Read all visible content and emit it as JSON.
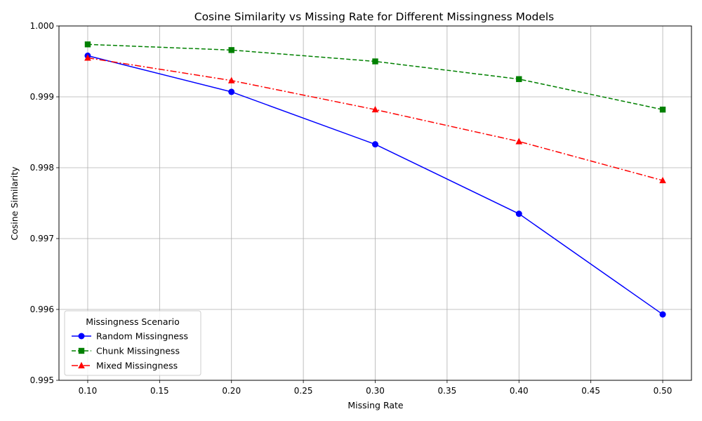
{
  "chart_data": {
    "type": "line",
    "title": "Cosine Similarity vs Missing Rate for Different Missingness Models",
    "xlabel": "Missing Rate",
    "ylabel": "Cosine Similarity",
    "x": [
      0.1,
      0.2,
      0.3,
      0.4,
      0.5
    ],
    "xlim": [
      0.08,
      0.52
    ],
    "ylim": [
      0.995,
      1.0
    ],
    "xticks": [
      0.1,
      0.15,
      0.2,
      0.25,
      0.3,
      0.35,
      0.4,
      0.45,
      0.5
    ],
    "xtick_labels": [
      "0.10",
      "0.15",
      "0.20",
      "0.25",
      "0.30",
      "0.35",
      "0.40",
      "0.45",
      "0.50"
    ],
    "yticks": [
      0.995,
      0.996,
      0.997,
      0.998,
      0.999,
      1.0
    ],
    "ytick_labels": [
      "0.995",
      "0.996",
      "0.997",
      "0.998",
      "0.999",
      "1.000"
    ],
    "grid": true,
    "legend": {
      "title": "Missingness Scenario",
      "position": "lower-left"
    },
    "series": [
      {
        "name": "Random Missingness",
        "color": "#0000ff",
        "marker": "circle",
        "linestyle": "solid",
        "values": [
          0.99958,
          0.99907,
          0.99833,
          0.99735,
          0.99593
        ]
      },
      {
        "name": "Chunk Missingness",
        "color": "#008000",
        "marker": "square",
        "linestyle": "dashed",
        "values": [
          0.99974,
          0.99966,
          0.9995,
          0.99925,
          0.99882
        ]
      },
      {
        "name": "Mixed Missingness",
        "color": "#ff0000",
        "marker": "triangle",
        "linestyle": "dashdot",
        "values": [
          0.99955,
          0.99923,
          0.99882,
          0.99837,
          0.99782
        ]
      }
    ]
  }
}
